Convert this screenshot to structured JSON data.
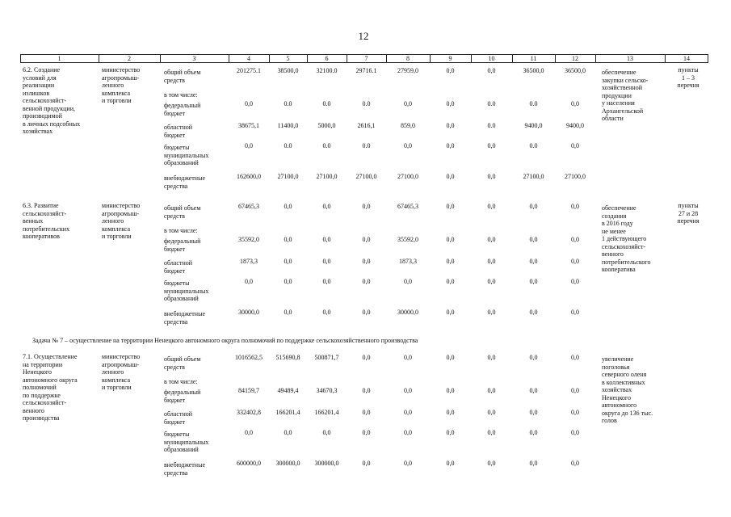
{
  "page_number": "12",
  "table": {
    "header": [
      "1",
      "2",
      "3",
      "4",
      "5",
      "6",
      "7",
      "8",
      "9",
      "10",
      "11",
      "12",
      "13",
      "14"
    ],
    "sections": [
      {
        "name": "6.2. Создание\nусловий для\nреализации\nизлишков\nсельскохозяйст-\nвенной продукции,\nпроизводимой\nв личных подсобных\nхозяйствах",
        "executor": "министерство\nагропромыш-\nленного\nкомплекса\nи торговли",
        "rows": [
          {
            "label": "общий объем\nсредств",
            "values": [
              "201275.1",
              "38500,0",
              "32100.0",
              "29716.1",
              "27959,0",
              "0,0",
              "0,0",
              "36500,0",
              "36500,0"
            ]
          },
          {
            "label": "в том числе:"
          },
          {
            "label": "федеральный\nбюджет",
            "values": [
              "0,0",
              "0.0",
              "0.0",
              "0.0",
              "0,0",
              "0,0",
              "0.0",
              "0.0",
              "0,0"
            ]
          },
          {
            "label": "областной\nбюджет",
            "values": [
              "38675,1",
              "11400,0",
              "5000,0",
              "2616,1",
              "859,0",
              "0,0",
              "0.0",
              "9400,0",
              "9400,0"
            ]
          },
          {
            "label": "бюджеты\nмуниципальных\nобразований",
            "values": [
              "0,0",
              "0.0",
              "0.0",
              "0.0",
              "0,0",
              "0,0",
              "0,0",
              "0.0",
              "0,0"
            ]
          },
          {
            "label": "внебюджетные\nсредства",
            "values": [
              "162600,0",
              "27100,0",
              "27100,0",
              "27100,0",
              "27100,0",
              "0,0",
              "0,0",
              "27100,0",
              "27100,0"
            ]
          }
        ],
        "result": "обеспечение\nзакупки сельско-\nхозяйственной\nпродукции\nу населения\nАрхангельской\nобласти",
        "reference": "пункты\n1 – 3\nперечня"
      },
      {
        "name": "6.3. Развитие\nсельскохозяйст-\nвенных\nпотребительских\nкооперативов",
        "executor": "министерство\nагропромыш-\nленного\nкомплекса\nи торговли",
        "rows": [
          {
            "label": "общий объем\nсредств",
            "values": [
              "67465,3",
              "0,0",
              "0,0",
              "0,0",
              "67465,3",
              "0,0",
              "0,0",
              "0,0",
              "0,0"
            ]
          },
          {
            "label": "в том числе:"
          },
          {
            "label": "федеральный\nбюджет",
            "values": [
              "35592,0",
              "0,0",
              "0,0",
              "0,0",
              "35592,0",
              "0,0",
              "0,0",
              "0,0",
              "0,0"
            ]
          },
          {
            "label": "областной\nбюджет",
            "values": [
              "1873,3",
              "0,0",
              "0,0",
              "0,0",
              "1873,3",
              "0,0",
              "0,0",
              "0,0",
              "0,0"
            ]
          },
          {
            "label": "бюджеты\nмуниципальных\nобразований",
            "values": [
              "0,0",
              "0,0",
              "0,0",
              "0,0",
              "0,0",
              "0,0",
              "0,0",
              "0,0",
              "0,0"
            ]
          },
          {
            "label": "внебюджетные\nсредства",
            "values": [
              "30000,0",
              "0,0",
              "0,0",
              "0,0",
              "30000,0",
              "0,0",
              "0,0",
              "0,0",
              "0,0"
            ]
          }
        ],
        "result": "обеспечение\nсоздания\nв 2016 году\nне менее\n1 действующего\nсельскохозяйст-\nвенного\nпотребительского\nкооператива",
        "reference": "пункты\n27 и 28\nперечня"
      },
      {
        "name": "7.1. Осуществление\nна территории\nНенецкого\nавтономного округа\nполномочий\nпо поддержке\nсельскохозяйст-\nвенного\nпроизводства",
        "executor": "министерство\nагропромыш-\nленного\nкомплекса\nи торговли",
        "rows": [
          {
            "label": "общий объем\nсредств",
            "values": [
              "1016562,5",
              "515690,8",
              "500871,7",
              "0,0",
              "0,0",
              "0,0",
              "0,0",
              "0,0",
              "0,0"
            ]
          },
          {
            "label": "в том числе:"
          },
          {
            "label": "федеральный\nбюджет",
            "values": [
              "84159,7",
              "49489,4",
              "34670,3",
              "0,0",
              "0,0",
              "0,0",
              "0,0",
              "0,0",
              "0,0"
            ]
          },
          {
            "label": "областной\nбюджет",
            "values": [
              "332402,8",
              "166201,4",
              "166201,4",
              "0,0",
              "0,0",
              "0,0",
              "0,0",
              "0,0",
              "0,0"
            ]
          },
          {
            "label": "бюджеты\nмуниципальных\nобразований",
            "values": [
              "0,0",
              "0,0",
              "0,0",
              "0,0",
              "0,0",
              "0,0",
              "0,0",
              "0,0",
              "0,0"
            ]
          },
          {
            "label": "внебюджетные\nсредства",
            "values": [
              "600000,0",
              "300000,0",
              "300000,0",
              "0,0",
              "0,0",
              "0,0",
              "0,0",
              "0,0",
              "0,0"
            ]
          }
        ],
        "result": "увеличение\nпоголовья\nсеверного оленя\nв коллективных\nхозяйствах\nНенецкого\nавтономного\nокруга до 136 тыс.\nголов"
      }
    ],
    "task": "Задача № 7 – осуществление на территории Ненецкого автономного округа полномочий по поддержке сельскохозяйственного производства"
  }
}
